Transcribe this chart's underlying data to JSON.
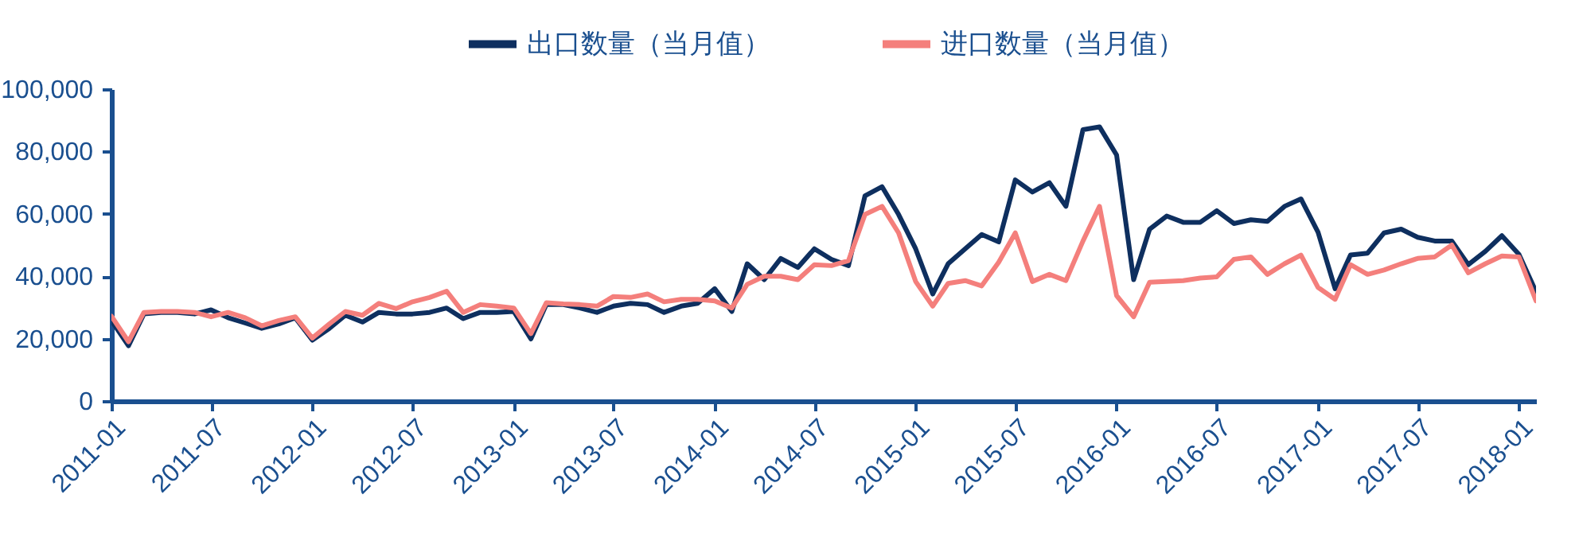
{
  "chart_data": {
    "type": "line",
    "legend": "top",
    "grid": false,
    "line_style": "solid",
    "marker": "none",
    "x": [
      "2011-01",
      "2011-02",
      "2011-03",
      "2011-04",
      "2011-05",
      "2011-06",
      "2011-07",
      "2011-08",
      "2011-09",
      "2011-10",
      "2011-11",
      "2011-12",
      "2012-01",
      "2012-02",
      "2012-03",
      "2012-04",
      "2012-05",
      "2012-06",
      "2012-07",
      "2012-08",
      "2012-09",
      "2012-10",
      "2012-11",
      "2012-12",
      "2013-01",
      "2013-02",
      "2013-03",
      "2013-04",
      "2013-05",
      "2013-06",
      "2013-07",
      "2013-08",
      "2013-09",
      "2013-10",
      "2013-11",
      "2013-12",
      "2014-01",
      "2014-02",
      "2014-03",
      "2014-04",
      "2014-05",
      "2014-06",
      "2014-07",
      "2014-08",
      "2014-09",
      "2014-10",
      "2014-11",
      "2014-12",
      "2015-01",
      "2015-02",
      "2015-03",
      "2015-04",
      "2015-05",
      "2015-06",
      "2015-07",
      "2015-08",
      "2015-09",
      "2015-10",
      "2015-11",
      "2015-12",
      "2016-01",
      "2016-02",
      "2016-03",
      "2016-04",
      "2016-05",
      "2016-06",
      "2016-07",
      "2016-08",
      "2016-09",
      "2016-10",
      "2016-11",
      "2016-12",
      "2017-01",
      "2017-02",
      "2017-03",
      "2017-04",
      "2017-05",
      "2017-06",
      "2017-07",
      "2017-08",
      "2017-09",
      "2017-10",
      "2017-11",
      "2017-12",
      "2018-01",
      "2018-02"
    ],
    "series": [
      {
        "name": "出口数量（当月值）",
        "color": "#0e2f5f",
        "values": [
          25800,
          17700,
          27900,
          28400,
          28400,
          27900,
          29200,
          26700,
          25000,
          23300,
          24700,
          26700,
          19500,
          23300,
          27500,
          25300,
          28400,
          27900,
          27900,
          28400,
          29800,
          26400,
          28400,
          28400,
          28700,
          19900,
          30900,
          30900,
          29800,
          28400,
          30400,
          31300,
          30900,
          28400,
          30400,
          31300,
          36000,
          28700,
          44000,
          38900,
          45700,
          42800,
          48800,
          45400,
          43400,
          65800,
          68700,
          59800,
          48800,
          34300,
          44000,
          48800,
          53400,
          51000,
          70900,
          67000,
          70000,
          62400,
          87000,
          87900,
          78900,
          38900,
          55100,
          59300,
          57300,
          57300,
          61000,
          56900,
          58100,
          57600,
          62400,
          64800,
          54100,
          36000,
          46800,
          47400,
          53900,
          55100,
          52500,
          51300,
          51300,
          43700,
          48000,
          53000,
          47000,
          35000
        ]
      },
      {
        "name": "进口数量（当月值）",
        "color": "#f47f7c",
        "values": [
          27200,
          19000,
          28400,
          28700,
          28700,
          28400,
          27000,
          28400,
          26700,
          24100,
          25800,
          27000,
          20200,
          24700,
          28700,
          27500,
          31300,
          29600,
          31800,
          33200,
          35200,
          28400,
          30900,
          30400,
          29800,
          21600,
          31500,
          31100,
          30900,
          30400,
          33500,
          33200,
          34300,
          31800,
          32600,
          32600,
          32100,
          29800,
          37400,
          40000,
          40000,
          38900,
          43700,
          43400,
          45000,
          59800,
          62400,
          53900,
          38300,
          30400,
          37700,
          38600,
          36900,
          44500,
          53900,
          38300,
          40600,
          38600,
          51300,
          62400,
          33800,
          27000,
          38100,
          38300,
          38600,
          39400,
          39800,
          45400,
          46200,
          40600,
          44000,
          46800,
          36400,
          32600,
          43700,
          40600,
          42000,
          44000,
          45700,
          46200,
          50000,
          41100,
          44000,
          46500,
          46200,
          32100
        ]
      }
    ],
    "xlim": [
      "2011-01",
      "2018-02"
    ],
    "xticks": [
      "2011-01",
      "2011-07",
      "2012-01",
      "2012-07",
      "2013-01",
      "2013-07",
      "2014-01",
      "2014-07",
      "2015-01",
      "2015-07",
      "2016-01",
      "2016-07",
      "2017-01",
      "2017-07",
      "2018-01"
    ],
    "ylim": [
      0,
      100000
    ],
    "yticks": [
      {
        "value": 0,
        "label": "0"
      },
      {
        "value": 20000,
        "label": "20,000"
      },
      {
        "value": 40000,
        "label": "40,000"
      },
      {
        "value": 60000,
        "label": "60,000"
      },
      {
        "value": 80000,
        "label": "80,000"
      },
      {
        "value": 100000,
        "label": "100,000"
      }
    ]
  }
}
